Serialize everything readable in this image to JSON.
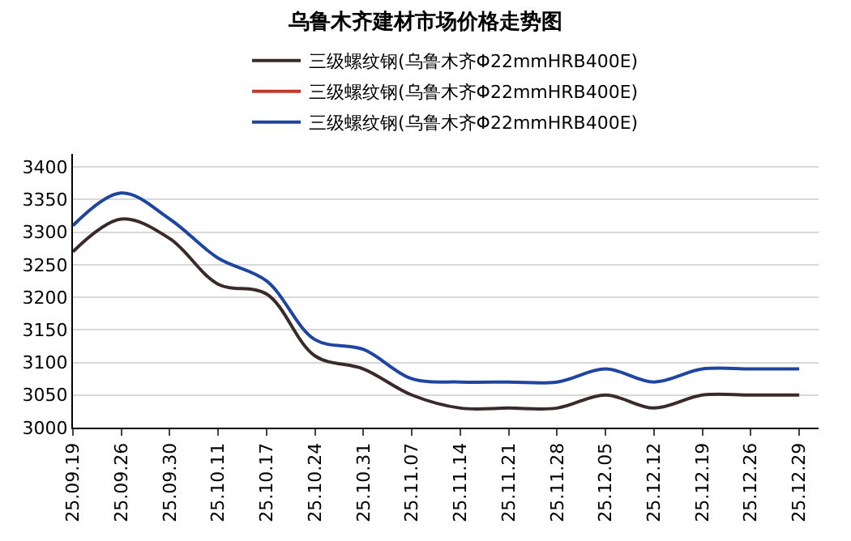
{
  "chart_data": {
    "type": "line",
    "title": "乌鲁木齐建材市场价格走势图",
    "categories": [
      "25.09.19",
      "25.09.26",
      "25.09.30",
      "25.10.11",
      "25.10.17",
      "25.10.24",
      "25.10.31",
      "25.11.07",
      "25.11.14",
      "25.11.21",
      "25.11.28",
      "25.12.05",
      "25.12.12",
      "25.12.19",
      "25.12.26",
      "25.12.29"
    ],
    "series": [
      {
        "name": "三级螺纹钢(乌鲁木齐Φ22mmHRB400E)",
        "color": "#3a2a2a",
        "values": [
          3270,
          3320,
          3290,
          3220,
          3205,
          3110,
          3090,
          3050,
          3030,
          3030,
          3030,
          3050,
          3030,
          3050,
          3050,
          3050
        ]
      },
      {
        "name": "三级螺纹钢(乌鲁木齐Φ22mmHRB400E)",
        "color": "#c0392b",
        "values": [
          null,
          null,
          null,
          null,
          null,
          null,
          null,
          null,
          null,
          null,
          null,
          null,
          null,
          null,
          null,
          null
        ]
      },
      {
        "name": "三级螺纹钢(乌鲁木齐Φ22mmHRB400E)",
        "color": "#1f45a0",
        "values": [
          3310,
          3360,
          3320,
          3260,
          3225,
          3135,
          3120,
          3075,
          3070,
          3070,
          3070,
          3090,
          3070,
          3090,
          3090,
          3090
        ]
      }
    ],
    "ylim": [
      3000,
      3420
    ],
    "yticks": [
      3000,
      3050,
      3100,
      3150,
      3200,
      3250,
      3300,
      3350,
      3400
    ],
    "grid": "y",
    "legend": "top",
    "marker": "none",
    "line_style": "solid"
  }
}
